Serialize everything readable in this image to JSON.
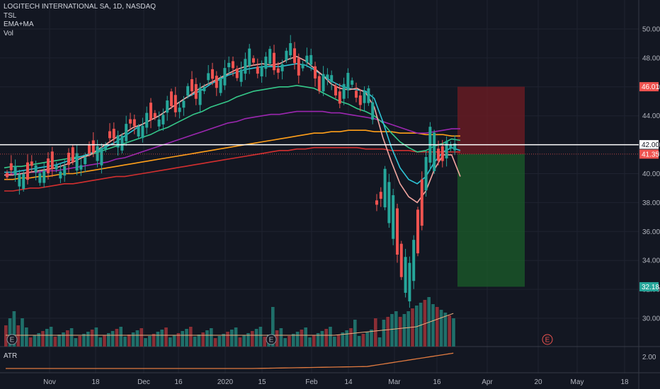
{
  "legend": {
    "symbol": "LOGITECH INTERNATIONAL SA, 1D, NASDAQ",
    "ind1": "TSL",
    "ind2": "EMA+MA",
    "ind3": "Vol"
  },
  "atr_pane": {
    "label": "ATR",
    "value_label": "2.00"
  },
  "colors": {
    "background": "#131722",
    "grid": "#1f2330",
    "text": "#b2b5be",
    "up": "#26a69a",
    "down": "#ef5350",
    "up_vol": "#1f6f6a",
    "down_vol": "#8b2e35",
    "ema_fast": "#f3a6a0",
    "ema_mid": "#2ec4d6",
    "ema_slow": "#35c98a",
    "ma_purple": "#9c27b0",
    "ma_orange": "#ff9f1a",
    "ma_red": "#d32f2f",
    "atr": "#e07a40",
    "vol_ma": "#f0b080",
    "target_zone": "#1b5e2a",
    "stop_zone": "#6b1c23"
  },
  "chart_data": {
    "type": "candlestick",
    "title": "LOGITECH INTERNATIONAL SA, 1D, NASDAQ",
    "ylim": [
      29,
      51
    ],
    "y_ticks": [
      "50.00",
      "48.00",
      "46.00",
      "44.00",
      "42.00",
      "40.00",
      "38.00",
      "36.00",
      "34.00",
      "32.00",
      "30.00"
    ],
    "x_ticks": [
      "Nov",
      "18",
      "Dec",
      "16",
      "2020",
      "15",
      "Feb",
      "14",
      "Mar",
      "16",
      "Apr",
      "20",
      "May",
      "18"
    ],
    "price_labels": {
      "stop": "46.01",
      "level_line": "42.00",
      "last": "41.40",
      "current": "41.35",
      "target": "32.18"
    },
    "horizontal_line": 42.0,
    "position": {
      "entry": 41.35,
      "stop": 46.01,
      "target": 32.18
    },
    "events": [
      "E",
      "E",
      "E"
    ],
    "series": [
      {
        "name": "EMA fast",
        "values": [
          39.9,
          39.9,
          40.0,
          40.1,
          40.2,
          40.3,
          40.4,
          40.6,
          40.8,
          41.1,
          41.3,
          41.7,
          42.1,
          42.5,
          42.8,
          43.2,
          43.4,
          43.7,
          44.0,
          44.4,
          44.8,
          45.2,
          45.6,
          46.0,
          46.3,
          46.6,
          46.9,
          47.2,
          47.4,
          47.5,
          47.6,
          47.5,
          47.6,
          47.9,
          48.1,
          47.8,
          47.3,
          46.8,
          46.2,
          45.9,
          45.8,
          45.9,
          45.6,
          44.6,
          42.5,
          40.8,
          39.3,
          38.4,
          38.0,
          38.8,
          40.3,
          41.3,
          41.3,
          39.8
        ]
      },
      {
        "name": "EMA mid",
        "values": [
          40.1,
          40.1,
          40.2,
          40.3,
          40.4,
          40.5,
          40.6,
          40.8,
          41.0,
          41.2,
          41.4,
          41.6,
          41.9,
          42.2,
          42.6,
          43.0,
          43.4,
          43.7,
          44.0,
          44.4,
          44.8,
          45.2,
          45.5,
          45.8,
          46.2,
          46.5,
          46.8,
          47.0,
          47.2,
          47.3,
          47.4,
          47.4,
          47.4,
          47.5,
          47.6,
          47.5,
          47.2,
          46.8,
          46.4,
          46.1,
          45.9,
          45.8,
          45.7,
          45.2,
          43.6,
          41.8,
          40.4,
          39.6,
          39.3,
          39.8,
          40.8,
          41.5,
          41.8,
          41.6
        ]
      },
      {
        "name": "EMA slow",
        "values": [
          40.4,
          40.5,
          40.5,
          40.6,
          40.7,
          40.8,
          40.9,
          41.0,
          41.1,
          41.2,
          41.3,
          41.5,
          41.7,
          41.9,
          42.1,
          42.3,
          42.5,
          42.7,
          43.0,
          43.2,
          43.5,
          43.8,
          44.1,
          44.3,
          44.6,
          44.8,
          45.0,
          45.3,
          45.5,
          45.7,
          45.8,
          45.9,
          46.0,
          46.0,
          46.1,
          46.0,
          45.9,
          45.6,
          45.3,
          45.0,
          44.8,
          44.5,
          44.3,
          44.0,
          43.5,
          42.8,
          42.2,
          41.8,
          41.5,
          41.6,
          41.9,
          42.1,
          42.4,
          42.3
        ]
      },
      {
        "name": "MA purple",
        "values": [
          39.9,
          40.0,
          40.0,
          40.1,
          40.1,
          40.2,
          40.2,
          40.3,
          40.4,
          40.5,
          40.6,
          40.7,
          40.8,
          41.0,
          41.1,
          41.3,
          41.5,
          41.7,
          41.9,
          42.1,
          42.3,
          42.5,
          42.7,
          42.9,
          43.1,
          43.3,
          43.5,
          43.6,
          43.8,
          43.9,
          44.0,
          44.1,
          44.1,
          44.2,
          44.3,
          44.3,
          44.3,
          44.3,
          44.2,
          44.2,
          44.1,
          44.0,
          43.9,
          43.8,
          43.6,
          43.4,
          43.2,
          43.0,
          42.8,
          42.8,
          42.9,
          43.0,
          43.1,
          43.1
        ]
      },
      {
        "name": "MA orange",
        "values": [
          39.6,
          39.6,
          39.7,
          39.7,
          39.8,
          39.8,
          39.9,
          40.0,
          40.0,
          40.1,
          40.2,
          40.3,
          40.4,
          40.5,
          40.6,
          40.7,
          40.8,
          40.9,
          41.0,
          41.1,
          41.2,
          41.3,
          41.4,
          41.5,
          41.6,
          41.7,
          41.8,
          41.9,
          42.0,
          42.1,
          42.2,
          42.3,
          42.4,
          42.5,
          42.6,
          42.7,
          42.8,
          42.8,
          42.9,
          42.9,
          43.0,
          43.0,
          43.0,
          42.9,
          42.9,
          42.9,
          42.8,
          42.8,
          42.8,
          42.7,
          42.7,
          42.7,
          42.6,
          42.6
        ]
      },
      {
        "name": "MA red",
        "values": [
          38.8,
          38.8,
          38.9,
          39.0,
          39.0,
          39.1,
          39.2,
          39.3,
          39.3,
          39.4,
          39.5,
          39.6,
          39.7,
          39.8,
          39.8,
          39.9,
          40.0,
          40.1,
          40.2,
          40.3,
          40.4,
          40.5,
          40.6,
          40.7,
          40.8,
          40.9,
          41.0,
          41.1,
          41.2,
          41.3,
          41.4,
          41.5,
          41.6,
          41.6,
          41.7,
          41.7,
          41.8,
          41.8,
          41.8,
          41.8,
          41.8,
          41.8,
          41.7,
          41.7,
          41.7,
          41.6,
          41.6,
          41.6,
          41.5,
          41.5,
          41.5,
          41.5,
          41.5,
          41.5
        ]
      }
    ]
  }
}
